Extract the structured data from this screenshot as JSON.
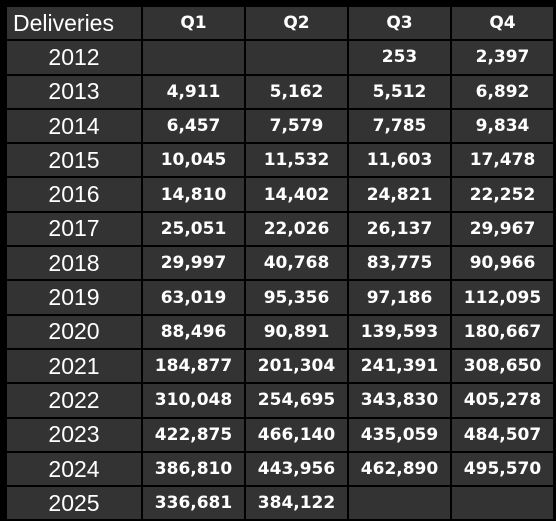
{
  "chart_data": {
    "type": "table",
    "corner_label": "Deliveries",
    "columns": [
      "Q1",
      "Q2",
      "Q3",
      "Q4"
    ],
    "rows": [
      {
        "year": "2012",
        "values": [
          "",
          "",
          "253",
          "2,397"
        ]
      },
      {
        "year": "2013",
        "values": [
          "4,911",
          "5,162",
          "5,512",
          "6,892"
        ]
      },
      {
        "year": "2014",
        "values": [
          "6,457",
          "7,579",
          "7,785",
          "9,834"
        ]
      },
      {
        "year": "2015",
        "values": [
          "10,045",
          "11,532",
          "11,603",
          "17,478"
        ]
      },
      {
        "year": "2016",
        "values": [
          "14,810",
          "14,402",
          "24,821",
          "22,252"
        ]
      },
      {
        "year": "2017",
        "values": [
          "25,051",
          "22,026",
          "26,137",
          "29,967"
        ]
      },
      {
        "year": "2018",
        "values": [
          "29,997",
          "40,768",
          "83,775",
          "90,966"
        ]
      },
      {
        "year": "2019",
        "values": [
          "63,019",
          "95,356",
          "97,186",
          "112,095"
        ]
      },
      {
        "year": "2020",
        "values": [
          "88,496",
          "90,891",
          "139,593",
          "180,667"
        ]
      },
      {
        "year": "2021",
        "values": [
          "184,877",
          "201,304",
          "241,391",
          "308,650"
        ]
      },
      {
        "year": "2022",
        "values": [
          "310,048",
          "254,695",
          "343,830",
          "405,278"
        ]
      },
      {
        "year": "2023",
        "values": [
          "422,875",
          "466,140",
          "435,059",
          "484,507"
        ]
      },
      {
        "year": "2024",
        "values": [
          "386,810",
          "443,956",
          "462,890",
          "495,570"
        ]
      },
      {
        "year": "2025",
        "values": [
          "336,681",
          "384,122",
          "",
          ""
        ]
      }
    ]
  },
  "colors": {
    "background": "#000000",
    "cell": "#333333",
    "text": "#ffffff",
    "border": "#000000"
  }
}
